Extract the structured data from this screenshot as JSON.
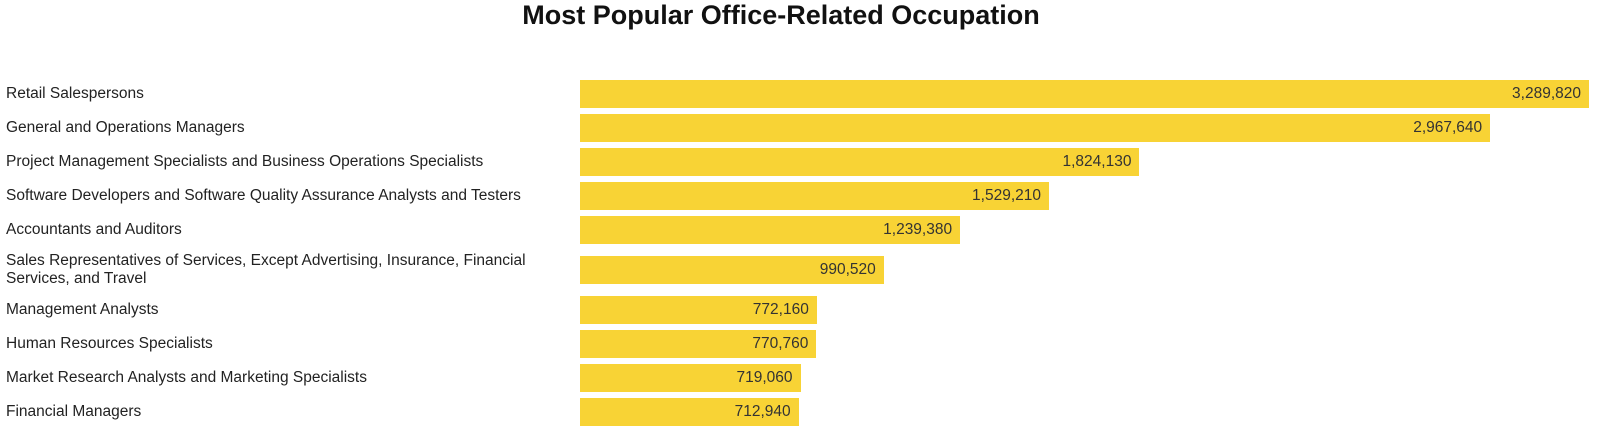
{
  "chart_data": {
    "type": "bar",
    "orientation": "horizontal",
    "title": "Most Popular Office-Related Occupation",
    "xlabel": "",
    "ylabel": "",
    "bar_color": "#F8D335",
    "categories": [
      "Retail Salespersons",
      "General and Operations Managers",
      "Project Management Specialists and Business Operations Specialists",
      "Software Developers and Software Quality Assurance Analysts and Testers",
      "Accountants and Auditors",
      "Sales Representatives of Services, Except Advertising, Insurance, Financial Services, and Travel",
      "Management Analysts",
      "Human Resources Specialists",
      "Market Research Analysts and Marketing Specialists",
      "Financial Managers"
    ],
    "values": [
      3289820,
      2967640,
      1824130,
      1529210,
      1239380,
      990520,
      772160,
      770760,
      719060,
      712940
    ],
    "value_labels": [
      "3,289,820",
      "2,967,640",
      "1,824,130",
      "1,529,210",
      "1,239,380",
      "990,520",
      "772,160",
      "770,760",
      "719,060",
      "712,940"
    ],
    "xlim": [
      0,
      3289820
    ]
  }
}
